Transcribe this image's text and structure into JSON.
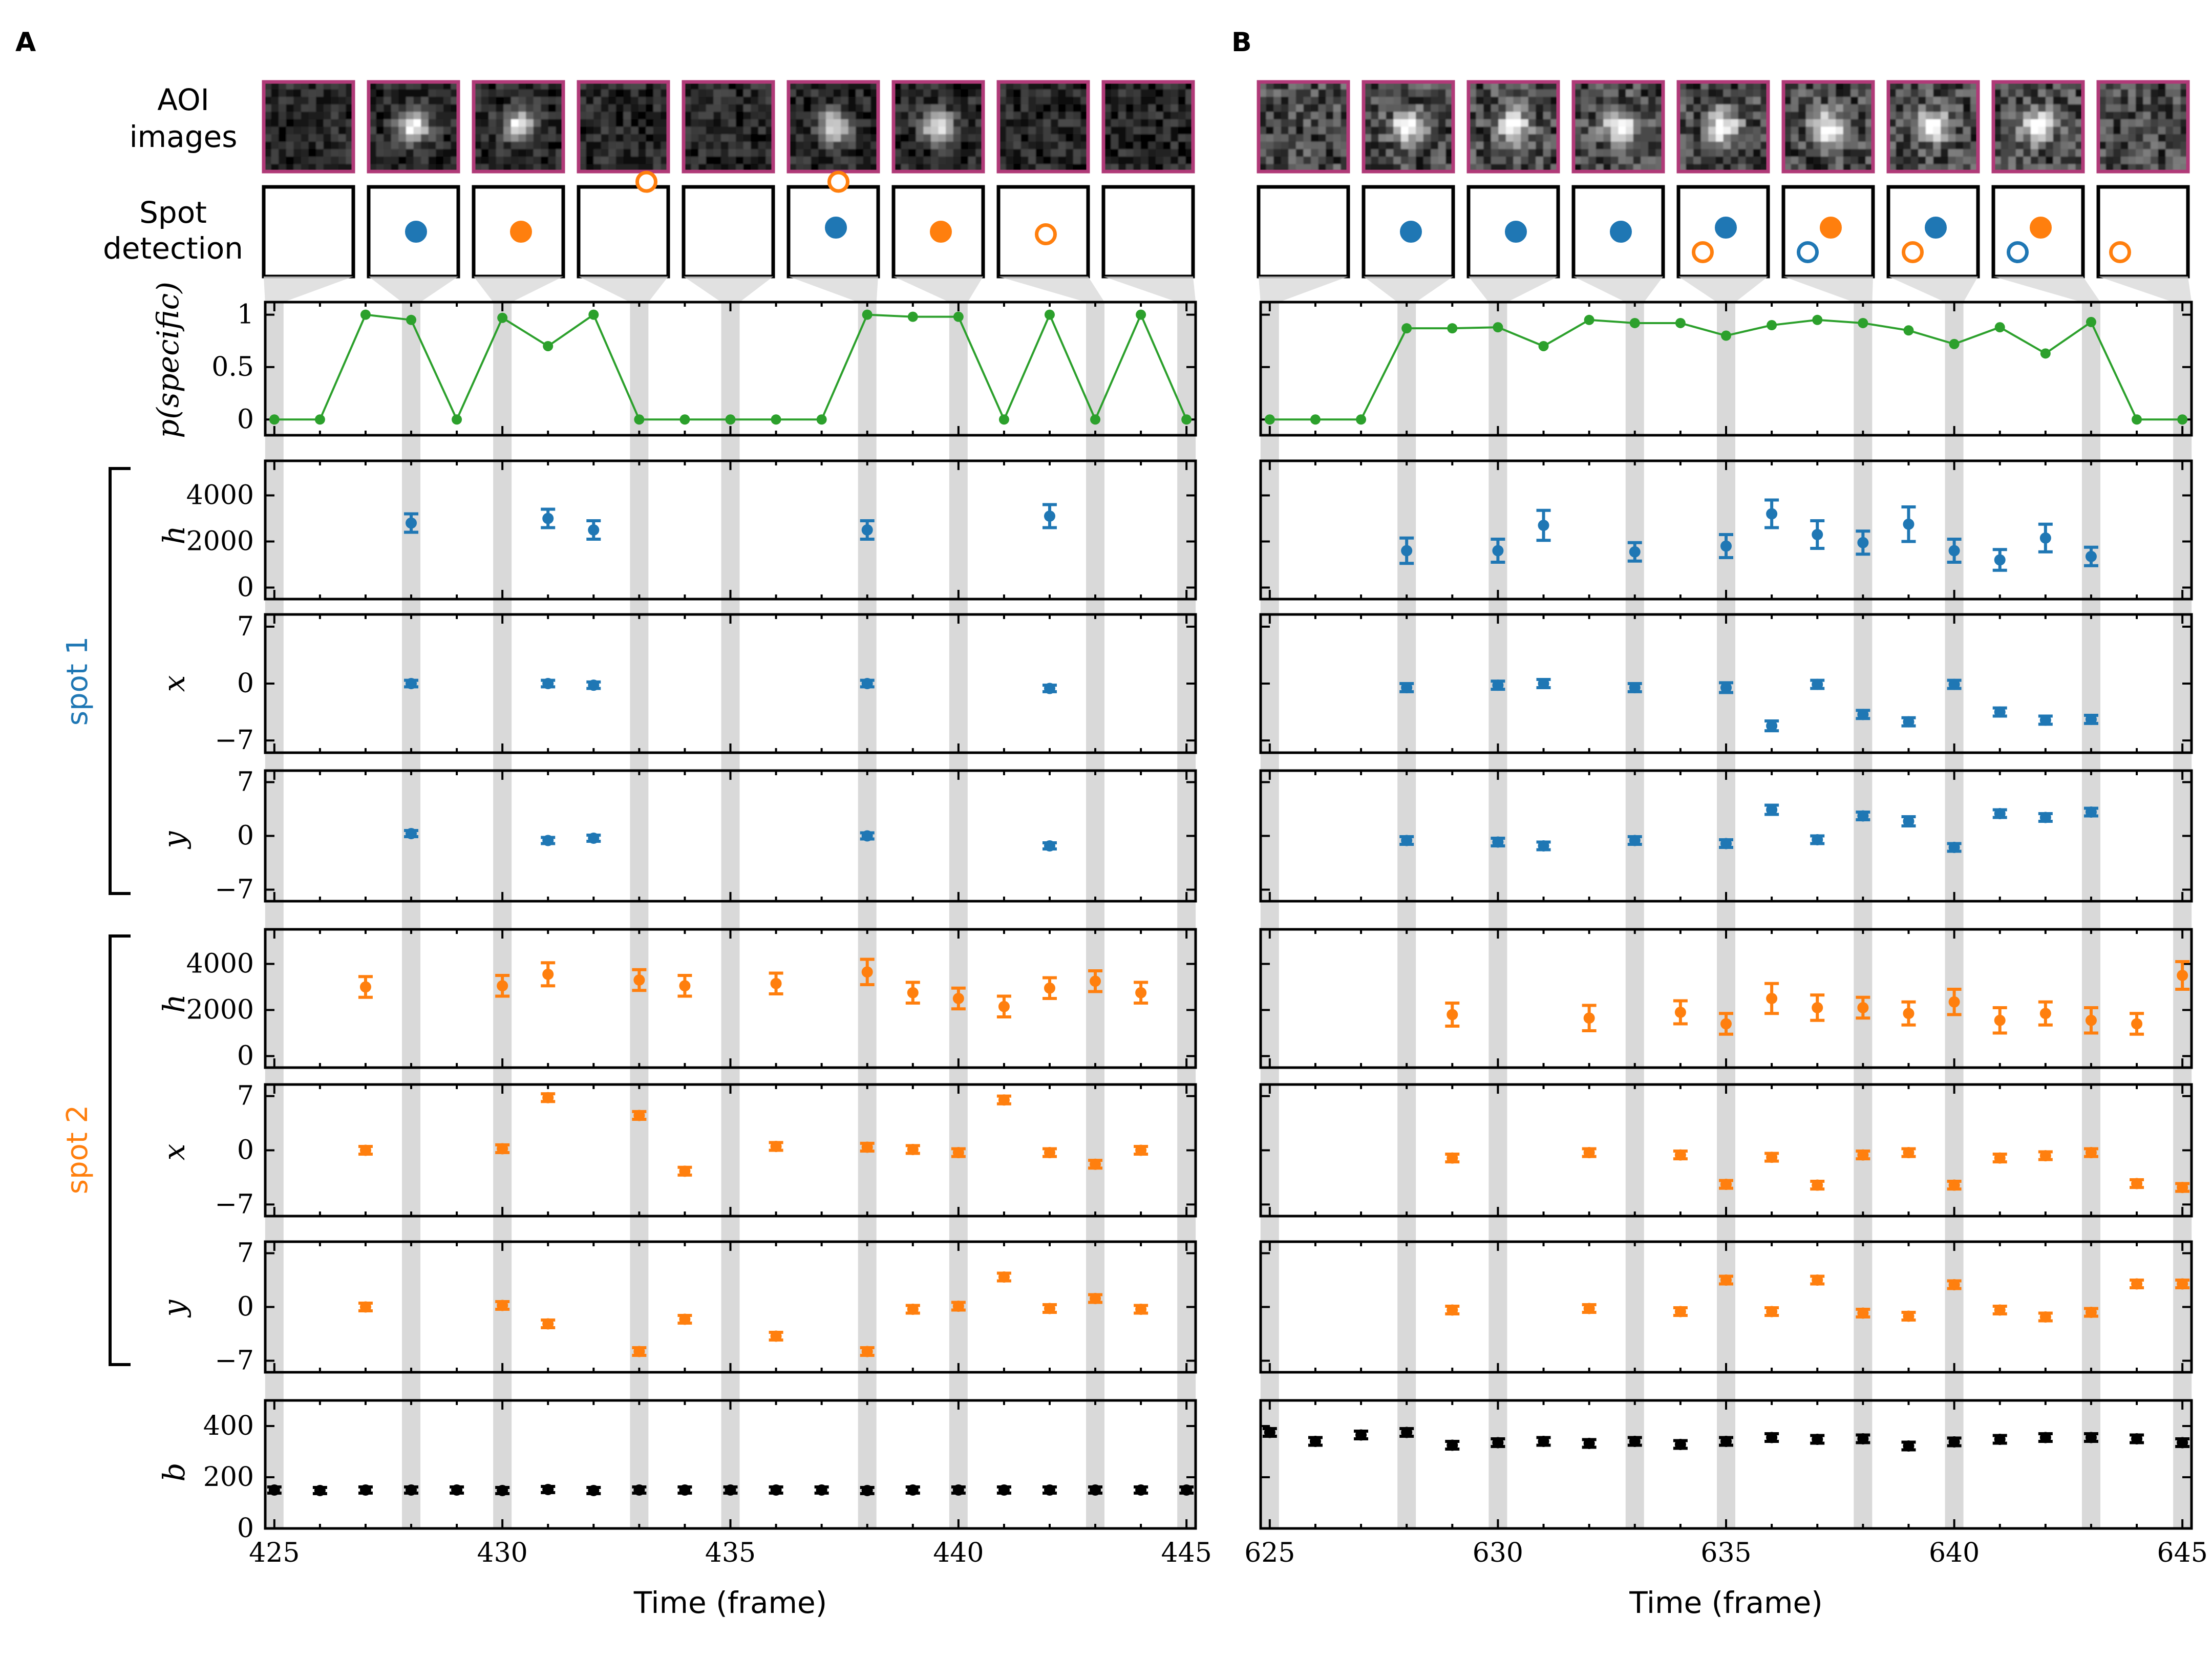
{
  "colors": {
    "spot1": "#1f77b4",
    "spot2": "#ff7f0e",
    "pspec": "#2ca02c",
    "background": "#000000",
    "aoi_border": "#b03a78",
    "highlight": "#d9d9d9"
  },
  "labels": {
    "row_aoi": [
      "AOI",
      "images"
    ],
    "row_spot": [
      "Spot",
      "detection"
    ],
    "xlabel": "Time (frame)",
    "ylabel_p": "p(specific)",
    "ylabel_h": "h",
    "ylabel_x": "x",
    "ylabel_y": "y",
    "ylabel_b": "b",
    "spot1": "spot 1",
    "spot2": "spot 2"
  },
  "chart_data": [
    {
      "type": "scatter",
      "panel": "A",
      "xlabel": "Time (frame)",
      "xlim": [
        424.8,
        445.2
      ],
      "xticks": [
        425,
        430,
        435,
        440,
        445
      ],
      "highlight_frames": [
        425,
        428,
        430,
        433,
        435,
        438,
        440,
        443,
        445
      ],
      "aoi_frames": [
        425,
        428,
        430,
        433,
        435,
        438,
        440,
        443,
        445
      ],
      "spot_detection": [
        [],
        [
          "s1f"
        ],
        [
          "s2f"
        ],
        [
          "s2o"
        ],
        [],
        [
          "s1f",
          "s2o"
        ],
        [
          "s2f"
        ],
        [
          "s2o"
        ],
        []
      ],
      "p_specific": {
        "x": [
          425,
          426,
          427,
          428,
          429,
          430,
          431,
          432,
          433,
          434,
          435,
          436,
          437,
          438,
          439,
          440,
          441,
          442,
          443,
          444,
          445
        ],
        "y": [
          0,
          0,
          1.0,
          0.95,
          0,
          0.97,
          0.7,
          1.0,
          0,
          0,
          0,
          0,
          0,
          1.0,
          0.98,
          0.98,
          0,
          1.0,
          0,
          1.0,
          0
        ]
      },
      "spot1": {
        "h": {
          "x": [
            428,
            431,
            432,
            438,
            442
          ],
          "y": [
            2800,
            3000,
            2500,
            2500,
            3100
          ],
          "err": [
            400,
            400,
            400,
            400,
            500
          ]
        },
        "x": {
          "x": [
            428,
            431,
            432,
            438,
            442
          ],
          "y": [
            0,
            0,
            -0.2,
            0,
            -0.6
          ],
          "err": [
            0.4,
            0.4,
            0.4,
            0.4,
            0.4
          ]
        },
        "y": {
          "x": [
            428,
            431,
            432,
            438,
            442
          ],
          "y": [
            0.3,
            -0.6,
            -0.3,
            0,
            -1.3
          ],
          "err": [
            0.4,
            0.4,
            0.4,
            0.4,
            0.4
          ]
        }
      },
      "spot2": {
        "h": {
          "x": [
            427,
            430,
            431,
            433,
            434,
            436,
            438,
            439,
            440,
            441,
            442,
            443,
            444
          ],
          "y": [
            3000,
            3050,
            3550,
            3300,
            3050,
            3150,
            3650,
            2750,
            2500,
            2150,
            2950,
            3250,
            2750
          ],
          "err": [
            450,
            450,
            500,
            450,
            450,
            450,
            550,
            450,
            450,
            450,
            450,
            450,
            450
          ]
        },
        "x": {
          "x": [
            427,
            430,
            431,
            433,
            434,
            436,
            438,
            439,
            440,
            441,
            442,
            443,
            444
          ],
          "y": [
            0,
            0.2,
            6.8,
            4.5,
            -2.7,
            0.5,
            0.4,
            0.1,
            -0.3,
            6.5,
            -0.3,
            -1.8,
            0
          ],
          "err": [
            0.5,
            0.5,
            0.5,
            0.5,
            0.5,
            0.5,
            0.5,
            0.5,
            0.5,
            0.5,
            0.5,
            0.5,
            0.5
          ]
        },
        "y": {
          "x": [
            427,
            430,
            431,
            433,
            434,
            436,
            438,
            439,
            440,
            441,
            442,
            443,
            444
          ],
          "y": [
            0,
            0.2,
            -2.2,
            -5.8,
            -1.6,
            -3.8,
            -5.8,
            -0.3,
            0.1,
            3.9,
            -0.2,
            1.1,
            -0.3
          ],
          "err": [
            0.5,
            0.5,
            0.5,
            0.5,
            0.5,
            0.5,
            0.5,
            0.5,
            0.5,
            0.5,
            0.5,
            0.5,
            0.5
          ]
        }
      },
      "b": {
        "x": [
          425,
          426,
          427,
          428,
          429,
          430,
          431,
          432,
          433,
          434,
          435,
          436,
          437,
          438,
          439,
          440,
          441,
          442,
          443,
          444,
          445
        ],
        "y": [
          150,
          148,
          150,
          150,
          150,
          148,
          152,
          148,
          150,
          150,
          150,
          150,
          150,
          148,
          150,
          150,
          150,
          150,
          150,
          150,
          150
        ],
        "err": [
          12,
          12,
          12,
          12,
          12,
          12,
          12,
          12,
          12,
          12,
          12,
          12,
          12,
          12,
          12,
          12,
          12,
          12,
          12,
          12,
          12
        ]
      }
    },
    {
      "type": "scatter",
      "panel": "B",
      "xlabel": "Time (frame)",
      "xlim": [
        624.8,
        645.2
      ],
      "xticks": [
        625,
        630,
        635,
        640,
        645
      ],
      "highlight_frames": [
        625,
        628,
        630,
        633,
        635,
        638,
        640,
        643,
        645
      ],
      "aoi_frames": [
        625,
        628,
        630,
        633,
        635,
        638,
        640,
        643,
        645
      ],
      "spot_detection": [
        [],
        [
          "s1f"
        ],
        [
          "s1f"
        ],
        [
          "s1f"
        ],
        [
          "s1f",
          "s2o"
        ],
        [
          "s2f",
          "s1o"
        ],
        [
          "s1f",
          "s2o"
        ],
        [
          "s2f",
          "s1o"
        ],
        [
          "s2o"
        ]
      ],
      "p_specific": {
        "x": [
          625,
          626,
          627,
          628,
          629,
          630,
          631,
          632,
          633,
          634,
          635,
          636,
          637,
          638,
          639,
          640,
          641,
          642,
          643,
          644,
          645
        ],
        "y": [
          0,
          0,
          0,
          0.87,
          0.87,
          0.88,
          0.7,
          0.95,
          0.92,
          0.92,
          0.8,
          0.9,
          0.95,
          0.92,
          0.85,
          0.72,
          0.88,
          0.63,
          0.93,
          0,
          0
        ]
      },
      "spot1": {
        "h": {
          "x": [
            628,
            630,
            631,
            633,
            635,
            636,
            637,
            638,
            639,
            640,
            641,
            642,
            643
          ],
          "y": [
            1600,
            1600,
            2700,
            1550,
            1800,
            3200,
            2300,
            1950,
            2750,
            1600,
            1200,
            2150,
            1350
          ],
          "err": [
            550,
            500,
            650,
            400,
            500,
            600,
            600,
            500,
            750,
            500,
            450,
            600,
            400
          ]
        },
        "x": {
          "x": [
            628,
            630,
            631,
            633,
            635,
            636,
            637,
            638,
            639,
            640,
            641,
            642,
            643
          ],
          "y": [
            -0.5,
            -0.2,
            0,
            -0.5,
            -0.5,
            -5.2,
            -0.1,
            -3.8,
            -4.7,
            -0.1,
            -3.5,
            -4.5,
            -4.4
          ],
          "err": [
            0.5,
            0.5,
            0.5,
            0.5,
            0.6,
            0.6,
            0.5,
            0.5,
            0.5,
            0.5,
            0.5,
            0.5,
            0.5
          ]
        },
        "y": {
          "x": [
            628,
            630,
            631,
            633,
            635,
            636,
            637,
            638,
            639,
            640,
            641,
            642,
            643
          ],
          "y": [
            -0.6,
            -0.8,
            -1.3,
            -0.6,
            -1.0,
            3.4,
            -0.5,
            2.6,
            1.9,
            -1.5,
            2.9,
            2.4,
            3.1
          ],
          "err": [
            0.5,
            0.5,
            0.5,
            0.5,
            0.5,
            0.6,
            0.5,
            0.5,
            0.6,
            0.5,
            0.5,
            0.5,
            0.5
          ]
        }
      },
      "spot2": {
        "h": {
          "x": [
            629,
            632,
            634,
            635,
            636,
            637,
            638,
            639,
            640,
            641,
            642,
            643,
            644,
            645
          ],
          "y": [
            1800,
            1650,
            1900,
            1400,
            2500,
            2100,
            2100,
            1850,
            2350,
            1550,
            1850,
            1550,
            1400,
            3500
          ],
          "err": [
            500,
            550,
            500,
            450,
            650,
            550,
            450,
            500,
            550,
            550,
            500,
            550,
            450,
            600
          ]
        },
        "x": {
          "x": [
            629,
            632,
            634,
            635,
            636,
            637,
            638,
            639,
            640,
            641,
            642,
            643,
            644,
            645
          ],
          "y": [
            -1.0,
            -0.3,
            -0.6,
            -4.4,
            -0.9,
            -4.5,
            -0.6,
            -0.3,
            -4.5,
            -1.0,
            -0.7,
            -0.3,
            -4.3,
            -4.8
          ],
          "err": [
            0.5,
            0.5,
            0.5,
            0.5,
            0.5,
            0.5,
            0.5,
            0.5,
            0.5,
            0.5,
            0.5,
            0.5,
            0.5,
            0.5
          ]
        },
        "y": {
          "x": [
            629,
            632,
            634,
            635,
            636,
            637,
            638,
            639,
            640,
            641,
            642,
            643,
            644,
            645
          ],
          "y": [
            -0.4,
            -0.2,
            -0.6,
            3.5,
            -0.6,
            3.5,
            -0.8,
            -1.2,
            2.9,
            -0.4,
            -1.3,
            -0.7,
            3.0,
            3.0
          ],
          "err": [
            0.5,
            0.5,
            0.5,
            0.5,
            0.5,
            0.5,
            0.5,
            0.5,
            0.5,
            0.5,
            0.5,
            0.5,
            0.5,
            0.5
          ]
        }
      },
      "b": {
        "x": [
          625,
          626,
          627,
          628,
          629,
          630,
          631,
          632,
          633,
          634,
          635,
          636,
          637,
          638,
          639,
          640,
          641,
          642,
          643,
          644,
          645
        ],
        "y": [
          375,
          340,
          365,
          375,
          325,
          335,
          340,
          332,
          340,
          328,
          340,
          355,
          348,
          350,
          322,
          338,
          348,
          355,
          355,
          350,
          335
        ],
        "err": [
          15,
          15,
          15,
          15,
          15,
          15,
          15,
          15,
          15,
          15,
          15,
          15,
          15,
          15,
          15,
          15,
          15,
          15,
          15,
          15,
          15
        ]
      }
    }
  ],
  "panels": [
    {
      "letter": "A",
      "xticklabels": [
        "425",
        "430",
        "435",
        "440",
        "445"
      ]
    },
    {
      "letter": "B",
      "xticklabels": [
        "625",
        "630",
        "635",
        "640",
        "645"
      ]
    }
  ],
  "axes": {
    "p": {
      "ylim": [
        -0.15,
        1.12
      ],
      "yticks": [
        0,
        0.5,
        1
      ],
      "yticklabels": [
        "0",
        "0.5",
        "1"
      ]
    },
    "h": {
      "ylim": [
        -500,
        5500
      ],
      "yticks": [
        0,
        2000,
        4000
      ],
      "yticklabels": [
        "0",
        "2000",
        "4000"
      ]
    },
    "x": {
      "ylim": [
        -8.5,
        8.5
      ],
      "yticks": [
        -7,
        0,
        7
      ],
      "yticklabels": [
        "−7",
        "0",
        "7"
      ]
    },
    "y": {
      "ylim": [
        -8.5,
        8.5
      ],
      "yticks": [
        -7,
        0,
        7
      ],
      "yticklabels": [
        "−7",
        "0",
        "7"
      ]
    },
    "b": {
      "ylim": [
        0,
        500
      ],
      "yticks": [
        0,
        200,
        400
      ],
      "yticklabels": [
        "0",
        "200",
        "400"
      ]
    }
  }
}
